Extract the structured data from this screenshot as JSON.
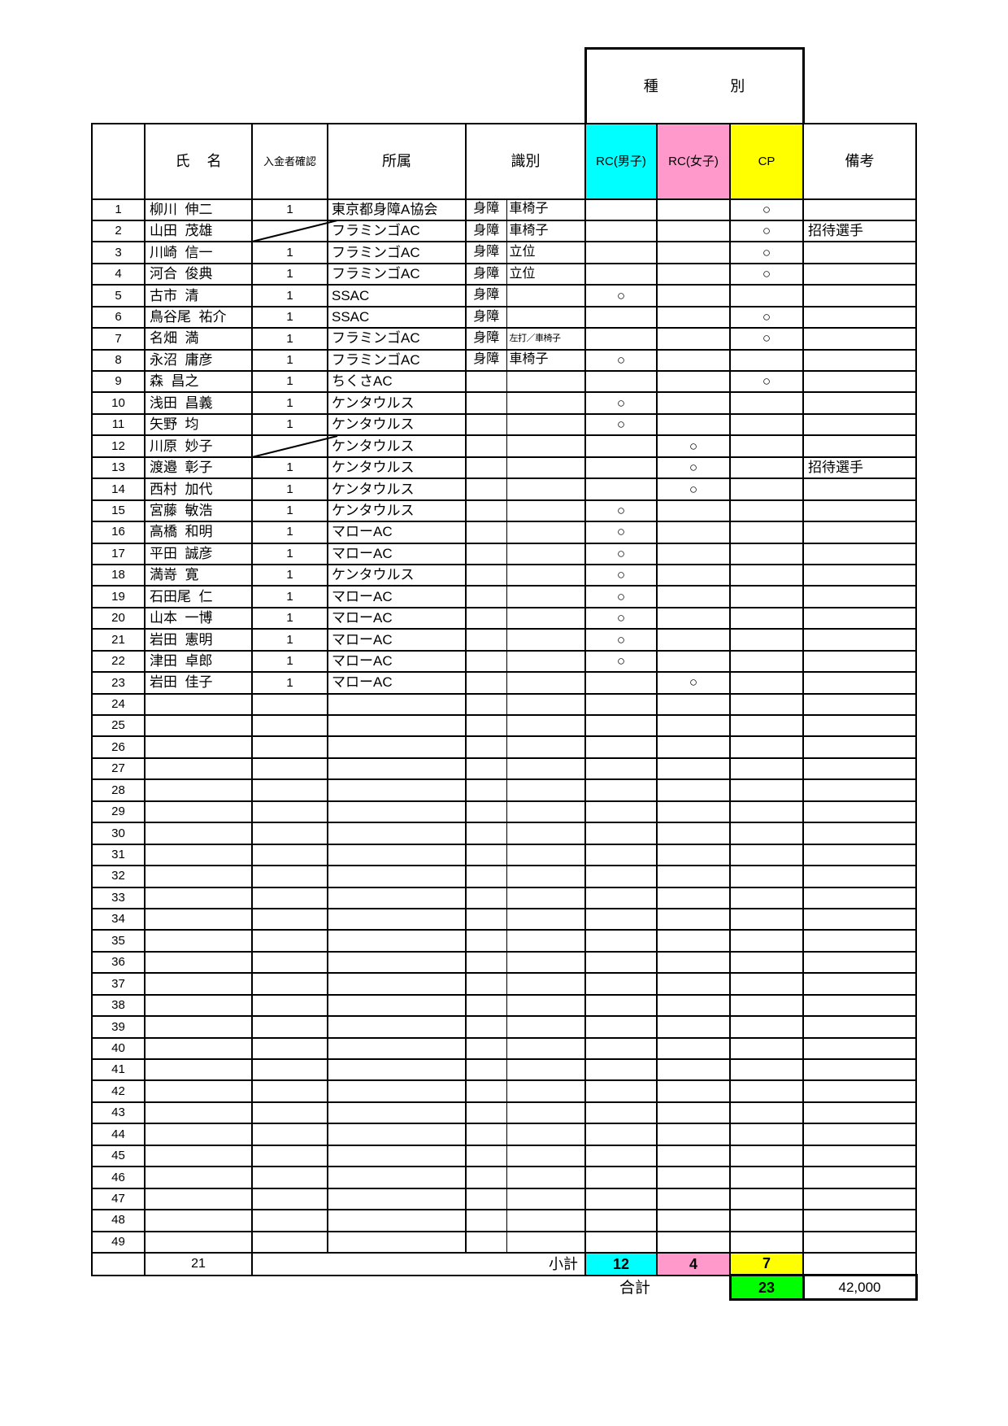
{
  "category_header": {
    "left": "種",
    "right": "別"
  },
  "columns": {
    "name_left": "氏",
    "name_right": "名",
    "payment": "入金者確認",
    "affiliation": "所属",
    "shikibetsu": "識別",
    "rc_male": "RC(男子)",
    "rc_female": "RC(女子)",
    "cp": "CP",
    "remarks": "備考"
  },
  "colors": {
    "rc_male": "#00ffff",
    "rc_female": "#ff99cc",
    "cp": "#ffff00",
    "total": "#00ff00"
  },
  "circle_mark": "○",
  "rows": [
    {
      "no": "1",
      "name": "柳川  伸二",
      "payment": "1",
      "affiliation": "東京都身障A協会",
      "class1": "身障",
      "class2": "車椅子",
      "cp": "○"
    },
    {
      "no": "2",
      "name": "山田  茂雄",
      "diag": true,
      "affiliation": "フラミンゴAC",
      "class1": "身障",
      "class2": "車椅子",
      "cp": "○",
      "remarks": "招待選手"
    },
    {
      "no": "3",
      "name": "川崎  信一",
      "payment": "1",
      "affiliation": "フラミンゴAC",
      "class1": "身障",
      "class2": "立位",
      "cp": "○"
    },
    {
      "no": "4",
      "name": "河合  俊典",
      "payment": "1",
      "affiliation": "フラミンゴAC",
      "class1": "身障",
      "class2": "立位",
      "cp": "○"
    },
    {
      "no": "5",
      "name": "古市  清",
      "payment": "1",
      "affiliation": "SSAC",
      "class1": "身障",
      "rc_male": "○"
    },
    {
      "no": "6",
      "name": "鳥谷尾  祐介",
      "payment": "1",
      "affiliation": "SSAC",
      "class1": "身障",
      "cp": "○"
    },
    {
      "no": "7",
      "name": "名畑  満",
      "payment": "1",
      "affiliation": "フラミンゴAC",
      "class1": "身障",
      "class2": "左打／車椅子",
      "class2_small": true,
      "cp": "○"
    },
    {
      "no": "8",
      "name": "永沼  庸彦",
      "payment": "1",
      "affiliation": "フラミンゴAC",
      "class1": "身障",
      "class2": "車椅子",
      "rc_male": "○"
    },
    {
      "no": "9",
      "name": "森  昌之",
      "payment": "1",
      "affiliation": "ちくさAC",
      "cp": "○"
    },
    {
      "no": "10",
      "name": "浅田  昌義",
      "payment": "1",
      "affiliation": "ケンタウルス",
      "rc_male": "○"
    },
    {
      "no": "11",
      "name": "矢野  均",
      "payment": "1",
      "affiliation": "ケンタウルス",
      "rc_male": "○"
    },
    {
      "no": "12",
      "name": "川原  妙子",
      "diag": true,
      "affiliation": "ケンタウルス",
      "rc_female": "○"
    },
    {
      "no": "13",
      "name": "渡邉  彰子",
      "payment": "1",
      "affiliation": "ケンタウルス",
      "rc_female": "○",
      "remarks": "招待選手"
    },
    {
      "no": "14",
      "name": "西村  加代",
      "payment": "1",
      "affiliation": "ケンタウルス",
      "rc_female": "○"
    },
    {
      "no": "15",
      "name": "宮藤  敏浩",
      "payment": "1",
      "affiliation": "ケンタウルス",
      "rc_male": "○"
    },
    {
      "no": "16",
      "name": "高橋  和明",
      "payment": "1",
      "affiliation": "マローAC",
      "rc_male": "○"
    },
    {
      "no": "17",
      "name": "平田  誠彦",
      "payment": "1",
      "affiliation": "マローAC",
      "rc_male": "○"
    },
    {
      "no": "18",
      "name": "満嵜  寛",
      "payment": "1",
      "affiliation": "ケンタウルス",
      "rc_male": "○"
    },
    {
      "no": "19",
      "name": "石田尾  仁",
      "payment": "1",
      "affiliation": "マローAC",
      "rc_male": "○"
    },
    {
      "no": "20",
      "name": "山本  一博",
      "payment": "1",
      "affiliation": "マローAC",
      "rc_male": "○"
    },
    {
      "no": "21",
      "name": "岩田  憲明",
      "payment": "1",
      "affiliation": "マローAC",
      "rc_male": "○"
    },
    {
      "no": "22",
      "name": "津田  卓郎",
      "payment": "1",
      "affiliation": "マローAC",
      "rc_male": "○"
    },
    {
      "no": "23",
      "name": "岩田  佳子",
      "payment": "1",
      "affiliation": "マローAC",
      "rc_female": "○"
    },
    {
      "no": "24"
    },
    {
      "no": "25"
    },
    {
      "no": "26"
    },
    {
      "no": "27"
    },
    {
      "no": "28"
    },
    {
      "no": "29"
    },
    {
      "no": "30"
    },
    {
      "no": "31"
    },
    {
      "no": "32"
    },
    {
      "no": "33"
    },
    {
      "no": "34"
    },
    {
      "no": "35"
    },
    {
      "no": "36"
    },
    {
      "no": "37"
    },
    {
      "no": "38"
    },
    {
      "no": "39"
    },
    {
      "no": "40"
    },
    {
      "no": "41"
    },
    {
      "no": "42"
    },
    {
      "no": "43"
    },
    {
      "no": "44"
    },
    {
      "no": "45"
    },
    {
      "no": "46"
    },
    {
      "no": "47"
    },
    {
      "no": "48"
    },
    {
      "no": "49"
    }
  ],
  "subtotal": {
    "label": "小計",
    "paid_count": "21",
    "rc_male": "12",
    "rc_female": "4",
    "cp": "7"
  },
  "total": {
    "label": "合計",
    "count": "23",
    "amount": "42,000"
  }
}
